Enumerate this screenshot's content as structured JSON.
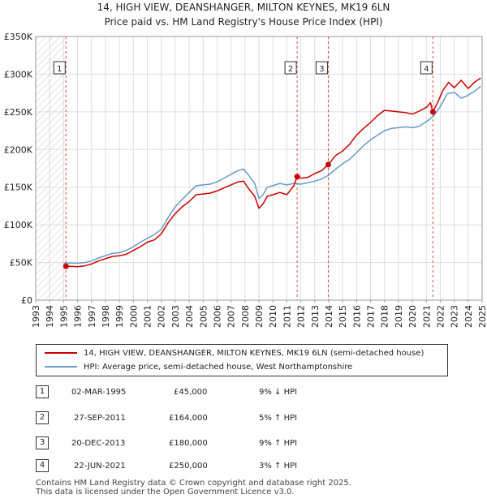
{
  "title_line1": "14, HIGH VIEW, DEANSHANGER, MILTON KEYNES, MK19 6LN",
  "title_line2": "Price paid vs. HM Land Registry's House Price Index (HPI)",
  "colors": {
    "property": "#cc0000",
    "hpi": "#6699cc",
    "marker": "#cc0000",
    "vline": "#cc0000"
  },
  "chart_data": {
    "type": "line",
    "title": "Price paid vs. HM Land Registry's House Price Index (HPI)",
    "xlabel": "",
    "ylabel": "",
    "xlim": [
      1993,
      2025
    ],
    "ylim": [
      0,
      350000
    ],
    "x_ticks": [
      1993,
      1994,
      1995,
      1996,
      1997,
      1998,
      1999,
      2000,
      2001,
      2002,
      2003,
      2004,
      2005,
      2006,
      2007,
      2008,
      2009,
      2010,
      2011,
      2012,
      2013,
      2014,
      2015,
      2016,
      2017,
      2018,
      2019,
      2020,
      2021,
      2022,
      2023,
      2024,
      2025
    ],
    "y_ticks": [
      {
        "value": 0,
        "label": "£0"
      },
      {
        "value": 50000,
        "label": "£50K"
      },
      {
        "value": 100000,
        "label": "£100K"
      },
      {
        "value": 150000,
        "label": "£150K"
      },
      {
        "value": 200000,
        "label": "£200K"
      },
      {
        "value": 250000,
        "label": "£250K"
      },
      {
        "value": 300000,
        "label": "£300K"
      },
      {
        "value": 350000,
        "label": "£350K"
      }
    ],
    "hatch_until": 1995.17,
    "series": [
      {
        "name": "14, HIGH VIEW, DEANSHANGER, MILTON KEYNES, MK19 6LN (semi-detached house)",
        "x": [
          1995.17,
          1995.5,
          1996,
          1996.5,
          1997,
          1997.5,
          1998,
          1998.5,
          1999,
          1999.5,
          2000,
          2000.5,
          2001,
          2001.5,
          2002,
          2002.5,
          2003,
          2003.5,
          2004,
          2004.5,
          2005,
          2005.5,
          2006,
          2006.5,
          2007,
          2007.5,
          2007.9,
          2008.3,
          2008.7,
          2009.0,
          2009.3,
          2009.6,
          2010,
          2010.5,
          2011,
          2011.5,
          2011.74,
          2012,
          2012.5,
          2013,
          2013.5,
          2013.97,
          2014.5,
          2015,
          2015.5,
          2016,
          2016.5,
          2017,
          2017.5,
          2018,
          2018.5,
          2019,
          2019.5,
          2020,
          2020.5,
          2021,
          2021.3,
          2021.47,
          2021.8,
          2022.2,
          2022.6,
          2023,
          2023.5,
          2024,
          2024.5,
          2024.9
        ],
        "y": [
          45000,
          45000,
          44500,
          45500,
          48000,
          52000,
          55000,
          58000,
          59000,
          61000,
          66000,
          71000,
          77000,
          80000,
          88000,
          103000,
          115000,
          124000,
          131000,
          140000,
          141000,
          142000,
          145000,
          149000,
          153000,
          157000,
          158000,
          147000,
          138000,
          122000,
          128000,
          138000,
          140000,
          143000,
          140000,
          152000,
          164000,
          162000,
          163000,
          168000,
          172000,
          180000,
          192000,
          198000,
          207000,
          219000,
          228000,
          236000,
          245000,
          252000,
          251000,
          250000,
          249000,
          247000,
          251000,
          256000,
          262000,
          250000,
          262000,
          279000,
          289000,
          282000,
          292000,
          281000,
          290000,
          295000
        ]
      },
      {
        "name": "HPI: Average price, semi-detached house, West Northamptonshire",
        "x": [
          1995,
          1995.5,
          1996,
          1996.5,
          1997,
          1997.5,
          1998,
          1998.5,
          1999,
          1999.5,
          2000,
          2000.5,
          2001,
          2001.5,
          2002,
          2002.5,
          2003,
          2003.5,
          2004,
          2004.5,
          2005,
          2005.5,
          2006,
          2006.5,
          2007,
          2007.5,
          2007.9,
          2008.3,
          2008.7,
          2009.0,
          2009.3,
          2009.6,
          2010,
          2010.5,
          2011,
          2011.5,
          2012,
          2012.5,
          2013,
          2013.5,
          2014,
          2014.5,
          2015,
          2015.5,
          2016,
          2016.5,
          2017,
          2017.5,
          2018,
          2018.5,
          2019,
          2019.5,
          2020,
          2020.5,
          2021,
          2021.5,
          2022,
          2022.5,
          2023,
          2023.5,
          2024,
          2024.5,
          2024.9
        ],
        "y": [
          49000,
          49500,
          49000,
          50000,
          52000,
          56000,
          59000,
          62000,
          63000,
          66000,
          71000,
          77000,
          82000,
          87000,
          94000,
          110000,
          124000,
          134000,
          143000,
          152000,
          153000,
          154000,
          157000,
          162000,
          167000,
          172000,
          174000,
          165000,
          155000,
          135000,
          140000,
          150000,
          152000,
          155000,
          153000,
          155000,
          154000,
          156000,
          158000,
          161000,
          166000,
          174000,
          181000,
          187000,
          196000,
          205000,
          213000,
          219000,
          225000,
          228000,
          229000,
          230000,
          229000,
          231000,
          237000,
          244000,
          257000,
          274000,
          276000,
          268000,
          272000,
          278000,
          284000
        ]
      }
    ],
    "transactions": [
      {
        "n": "1",
        "x": 1995.17,
        "price": 45000
      },
      {
        "n": "2",
        "x": 2011.74,
        "price": 164000
      },
      {
        "n": "3",
        "x": 2013.97,
        "price": 180000
      },
      {
        "n": "4",
        "x": 2021.47,
        "price": 250000
      }
    ]
  },
  "legend": {
    "property_label": "14, HIGH VIEW, DEANSHANGER, MILTON KEYNES, MK19 6LN (semi-detached house)",
    "hpi_label": "HPI: Average price, semi-detached house, West Northamptonshire"
  },
  "transactions_table": [
    {
      "n": "1",
      "date": "02-MAR-1995",
      "price": "£45,000",
      "hpi": "9% ↓ HPI"
    },
    {
      "n": "2",
      "date": "27-SEP-2011",
      "price": "£164,000",
      "hpi": "5% ↑ HPI"
    },
    {
      "n": "3",
      "date": "20-DEC-2013",
      "price": "£180,000",
      "hpi": "9% ↑ HPI"
    },
    {
      "n": "4",
      "date": "22-JUN-2021",
      "price": "£250,000",
      "hpi": "3% ↑ HPI"
    }
  ],
  "footer": {
    "line1": "Contains HM Land Registry data © Crown copyright and database right 2025.",
    "line2": "This data is licensed under the Open Government Licence v3.0."
  }
}
